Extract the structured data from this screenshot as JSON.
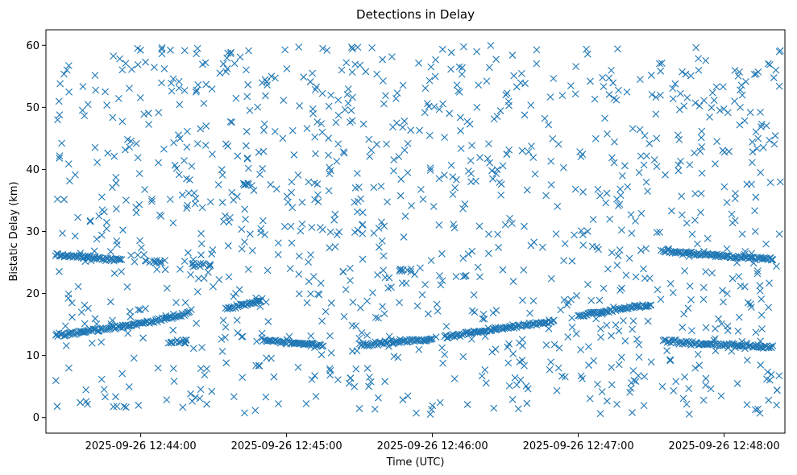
{
  "chart_data": {
    "type": "scatter",
    "title": "Detections in Delay",
    "xlabel": "Time (UTC)",
    "ylabel": "Bistatic Delay (km)",
    "x_unit": "UTC time",
    "x_ticks": [
      "2025-09-26 12:44:00",
      "2025-09-26 12:45:00",
      "2025-09-26 12:46:00",
      "2025-09-26 12:47:00",
      "2025-09-26 12:48:00"
    ],
    "y_ticks": [
      "0",
      "10",
      "20",
      "30",
      "40",
      "50",
      "60"
    ],
    "xlim": [
      "2025-09-26 12:43:21",
      "2025-09-26 12:48:25"
    ],
    "ylim": [
      -2.5,
      62.5
    ],
    "marker": "x",
    "marker_color": "#1f77b4",
    "grid": false,
    "tracks": [
      {
        "from": [
          "2025-09-26 12:43:25",
          26.2
        ],
        "to": [
          "2025-09-26 12:43:52",
          25.4
        ]
      },
      {
        "from": [
          "2025-09-26 12:43:25",
          13.2
        ],
        "to": [
          "2025-09-26 12:43:55",
          14.8
        ]
      },
      {
        "from": [
          "2025-09-26 12:43:55",
          14.8
        ],
        "to": [
          "2025-09-26 12:44:20",
          16.8
        ]
      },
      {
        "from": [
          "2025-09-26 12:44:35",
          17.5
        ],
        "to": [
          "2025-09-26 12:44:50",
          19.0
        ]
      },
      {
        "from": [
          "2025-09-26 12:44:50",
          12.5
        ],
        "to": [
          "2025-09-26 12:45:15",
          11.6
        ]
      },
      {
        "from": [
          "2025-09-26 12:45:30",
          11.7
        ],
        "to": [
          "2025-09-26 12:46:00",
          12.6
        ]
      },
      {
        "from": [
          "2025-09-26 12:46:05",
          13.0
        ],
        "to": [
          "2025-09-26 12:46:50",
          15.6
        ]
      },
      {
        "from": [
          "2025-09-26 12:47:00",
          16.5
        ],
        "to": [
          "2025-09-26 12:47:30",
          18.2
        ]
      },
      {
        "from": [
          "2025-09-26 12:47:35",
          26.8
        ],
        "to": [
          "2025-09-26 12:48:20",
          25.5
        ]
      },
      {
        "from": [
          "2025-09-26 12:47:35",
          12.2
        ],
        "to": [
          "2025-09-26 12:48:20",
          11.3
        ]
      }
    ],
    "clusters": [
      {
        "center": [
          "2025-09-26 12:44:15",
          12.3
        ],
        "spread": [
          4,
          0.3
        ],
        "count": 14
      },
      {
        "center": [
          "2025-09-26 12:44:25",
          24.6
        ],
        "spread": [
          4,
          0.3
        ],
        "count": 12
      },
      {
        "center": [
          "2025-09-26 12:44:05",
          25.2
        ],
        "spread": [
          4,
          0.3
        ],
        "count": 10
      },
      {
        "center": [
          "2025-09-26 12:44:43",
          37.6
        ],
        "spread": [
          2,
          0.2
        ],
        "count": 6
      },
      {
        "center": [
          "2025-09-26 12:45:50",
          23.8
        ],
        "spread": [
          4,
          0.3
        ],
        "count": 8
      }
    ],
    "clutter": {
      "count": 1150,
      "xlim": [
        "2025-09-26 12:43:25",
        "2025-09-26 12:48:25"
      ],
      "ylim": [
        0.5,
        60
      ]
    }
  }
}
